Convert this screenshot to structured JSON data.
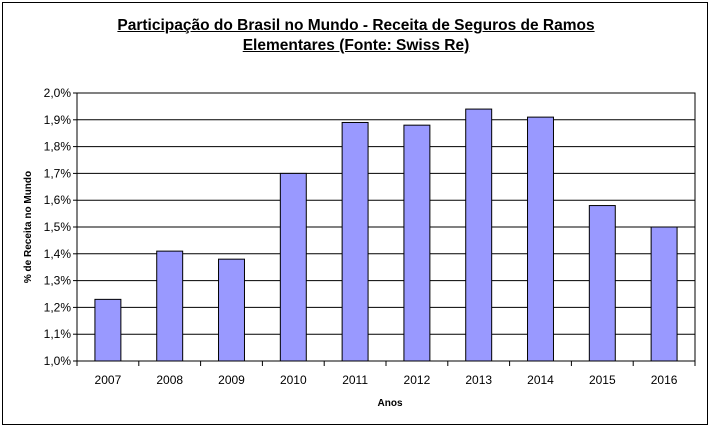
{
  "chart_data": {
    "type": "bar",
    "title_line1": "Participação do Brasil no Mundo - Receita de Seguros de Ramos",
    "title_line2": "Elementares (Fonte: Swiss Re)",
    "xlabel": "Anos",
    "ylabel": "% de Receita no Mundo",
    "categories": [
      "2007",
      "2008",
      "2009",
      "2010",
      "2011",
      "2012",
      "2013",
      "2014",
      "2015",
      "2016"
    ],
    "values": [
      1.23,
      1.41,
      1.38,
      1.7,
      1.89,
      1.88,
      1.94,
      1.91,
      1.58,
      1.5
    ],
    "ylim": [
      1.0,
      2.0
    ],
    "ytick_values": [
      1.0,
      1.1,
      1.2,
      1.3,
      1.4,
      1.5,
      1.6,
      1.7,
      1.8,
      1.9,
      2.0
    ],
    "ytick_labels": [
      "1,0%",
      "1,1%",
      "1,2%",
      "1,3%",
      "1,4%",
      "1,5%",
      "1,6%",
      "1,7%",
      "1,8%",
      "1,9%",
      "2,0%"
    ],
    "grid": true,
    "legend": "none",
    "bar_color": "#9999ff",
    "bar_edge_color": "#000000"
  }
}
